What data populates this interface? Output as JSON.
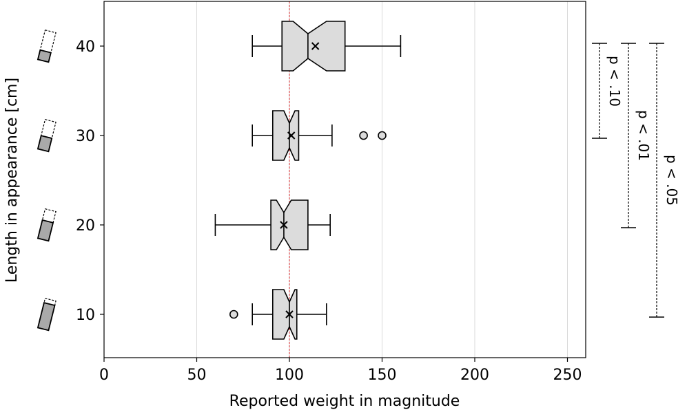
{
  "chart_data": {
    "type": "boxplot",
    "orientation": "horizontal",
    "notched": true,
    "xlabel": "Reported weight in magnitude",
    "ylabel": "Length in appearance [cm]",
    "xlim": [
      0,
      260
    ],
    "xticks": [
      0,
      50,
      100,
      150,
      200,
      250
    ],
    "grid": "vertical",
    "reference_line": {
      "x": 100,
      "color": "#d62728",
      "style": "dashed"
    },
    "box_color": "#dcdcdc",
    "categories": [
      "10",
      "20",
      "30",
      "40"
    ],
    "boxes": [
      {
        "category": "10",
        "whisker_low": 80,
        "q1": 91,
        "median": 100,
        "q3": 104,
        "whisker_high": 120,
        "notch_low": 97,
        "notch_high": 103,
        "mean": 100,
        "outliers": [
          70
        ]
      },
      {
        "category": "20",
        "whisker_low": 60,
        "q1": 90,
        "median": 97,
        "q3": 110,
        "whisker_high": 122,
        "notch_low": 93,
        "notch_high": 101,
        "mean": 97,
        "outliers": []
      },
      {
        "category": "30",
        "whisker_low": 80,
        "q1": 91,
        "median": 100,
        "q3": 105,
        "whisker_high": 123,
        "notch_low": 97,
        "notch_high": 103,
        "mean": 101,
        "outliers": [
          140,
          150
        ]
      },
      {
        "category": "40",
        "whisker_low": 80,
        "q1": 96,
        "median": 110,
        "q3": 130,
        "whisker_high": 160,
        "notch_low": 102,
        "notch_high": 120,
        "mean": 114,
        "outliers": []
      }
    ],
    "significance": [
      {
        "label": "p < .10",
        "from": "30",
        "to": "40"
      },
      {
        "label": "p < .01",
        "from": "20",
        "to": "40"
      },
      {
        "label": "p < .05",
        "from": "10",
        "to": "40"
      }
    ]
  }
}
